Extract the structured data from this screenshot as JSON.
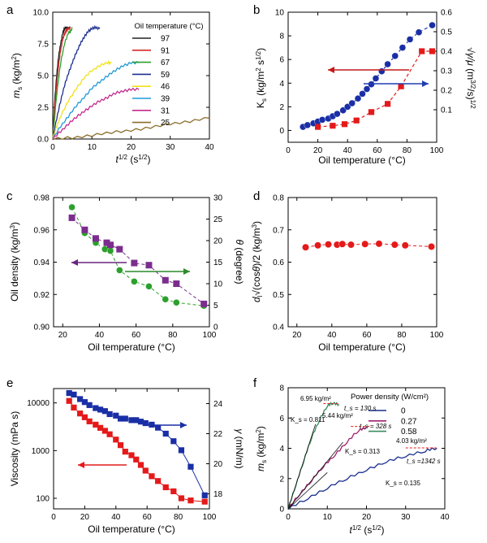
{
  "panels": [
    {
      "id": "a",
      "letter": "a"
    },
    {
      "id": "b",
      "letter": "b"
    },
    {
      "id": "c",
      "letter": "c"
    },
    {
      "id": "d",
      "letter": "d"
    },
    {
      "id": "e",
      "letter": "e"
    },
    {
      "id": "f",
      "letter": "f"
    }
  ],
  "chart_data": [
    {
      "id": "a",
      "type": "line",
      "xlabel": "t^1/2 (s^1/2)",
      "ylabel": "m_s (kg/m²)",
      "xlim": [
        0,
        40
      ],
      "ylim": [
        0,
        10
      ],
      "xticks": [
        0,
        10,
        20,
        30,
        40
      ],
      "yticks": [
        0.0,
        2.5,
        5.0,
        7.5,
        10.0
      ],
      "ytick_labels": [
        "0.0",
        "2.5",
        "5.0",
        "7.5",
        "10.0"
      ],
      "legend_title": "Oil temperature (°C)",
      "legend_position": "top-right",
      "series": [
        {
          "name": "97",
          "color": "#222222",
          "x": [
            0,
            0.5,
            1,
            1.5,
            2,
            2.5,
            3,
            3.5,
            4,
            4.5
          ],
          "y": [
            0,
            3.0,
            5.0,
            6.5,
            7.5,
            8.3,
            8.7,
            8.8,
            8.7,
            8.8
          ]
        },
        {
          "name": "91",
          "color": "#d62728",
          "x": [
            0,
            0.5,
            1,
            1.5,
            2,
            2.5,
            3,
            3.5,
            4,
            4.5
          ],
          "y": [
            0,
            2.5,
            4.3,
            5.8,
            7.0,
            7.8,
            8.3,
            8.6,
            8.7,
            8.7
          ]
        },
        {
          "name": "67",
          "color": "#2ca02c",
          "x": [
            0,
            1,
            2,
            3,
            4,
            4.5,
            5
          ],
          "y": [
            0,
            3.5,
            6.0,
            7.5,
            8.4,
            8.5,
            8.7
          ]
        },
        {
          "name": "59",
          "color": "#1f2f8f",
          "x": [
            0,
            1,
            2,
            3,
            4,
            5,
            6,
            7,
            8,
            9,
            10,
            11,
            12
          ],
          "y": [
            0,
            1.6,
            3.0,
            4.2,
            5.2,
            6.0,
            6.8,
            7.5,
            8.0,
            8.5,
            8.7,
            8.8,
            8.7
          ]
        },
        {
          "name": "46",
          "color": "#f2e11a",
          "x": [
            0,
            1,
            2,
            4,
            6,
            8,
            10,
            12,
            14,
            15
          ],
          "y": [
            0,
            1.0,
            1.8,
            3.0,
            4.0,
            4.8,
            5.4,
            5.8,
            6.0,
            6.0
          ]
        },
        {
          "name": "39",
          "color": "#1f9ad8",
          "x": [
            0,
            2,
            4,
            6,
            8,
            10,
            12,
            14,
            16,
            18,
            20,
            22
          ],
          "y": [
            0,
            1.0,
            1.8,
            2.6,
            3.3,
            4.0,
            4.5,
            5.0,
            5.4,
            5.8,
            6.0,
            6.0
          ]
        },
        {
          "name": "31",
          "color": "#c42a8e",
          "x": [
            0,
            2,
            4,
            6,
            8,
            10,
            12,
            14,
            16,
            18,
            20,
            22
          ],
          "y": [
            0,
            0.6,
            1.2,
            1.7,
            2.2,
            2.6,
            3.0,
            3.3,
            3.6,
            3.8,
            3.9,
            3.9
          ]
        },
        {
          "name": "25",
          "color": "#8b6d2a",
          "x": [
            0,
            5,
            10,
            15,
            20,
            25,
            30,
            35,
            40
          ],
          "y": [
            0,
            0.1,
            0.3,
            0.5,
            0.7,
            0.9,
            1.2,
            1.4,
            1.65
          ]
        }
      ]
    },
    {
      "id": "b",
      "type": "line",
      "xlabel": "Oil temperature (°C)",
      "ylabel": "K_s (kg/m² s^1/2)",
      "y2label": "√(γ/μ) (m^3/2/s)^1/2",
      "xlim": [
        0,
        100
      ],
      "ylim": [
        -1,
        10
      ],
      "y2lim": [
        -0.0667,
        0.6
      ],
      "xticks": [
        0,
        20,
        40,
        60,
        80,
        100
      ],
      "yticks": [
        0,
        2,
        4,
        6,
        8,
        10
      ],
      "y2ticks": [
        0.1,
        0.2,
        0.3,
        0.4,
        0.5,
        0.6
      ],
      "series": [
        {
          "name": "K_s",
          "axis": "left",
          "color": "#1a2fa6",
          "marker": "circle",
          "x": [
            10,
            13,
            17,
            20,
            23,
            27,
            30,
            33,
            37,
            40,
            43,
            47,
            50,
            53,
            56,
            59,
            63,
            67,
            72,
            77,
            82,
            88,
            97
          ],
          "y": [
            0.3,
            0.45,
            0.6,
            0.75,
            0.9,
            1.0,
            1.2,
            1.4,
            1.7,
            2.0,
            2.3,
            2.7,
            3.1,
            3.5,
            3.9,
            4.4,
            5.0,
            5.6,
            6.3,
            7.0,
            7.7,
            8.3,
            8.9
          ]
        },
        {
          "name": "√(γ/μ)",
          "axis": "right",
          "color": "#e41a1a",
          "marker": "square",
          "x": [
            20,
            30,
            38,
            46,
            56,
            67,
            76,
            90,
            97
          ],
          "y": [
            0.012,
            0.018,
            0.026,
            0.045,
            0.088,
            0.13,
            0.22,
            0.4,
            0.4
          ]
        }
      ]
    },
    {
      "id": "c",
      "type": "scatter",
      "xlabel": "Oil temperature (°C)",
      "ylabel": "Oil density (kg/m³)",
      "y2label": "θ (degree)",
      "xlim": [
        15,
        100
      ],
      "ylim": [
        0.9,
        0.98
      ],
      "y2lim": [
        0,
        30
      ],
      "xticks": [
        20,
        40,
        60,
        80,
        100
      ],
      "yticks": [
        0.9,
        0.92,
        0.94,
        0.96,
        0.98
      ],
      "y2ticks": [
        0,
        5,
        10,
        15,
        20,
        25,
        30
      ],
      "series": [
        {
          "name": "density",
          "axis": "left",
          "color": "#2ca02c",
          "marker": "circle",
          "x": [
            25,
            32,
            38,
            43,
            46,
            51,
            59,
            67,
            76,
            82,
            97
          ],
          "y": [
            0.974,
            0.958,
            0.952,
            0.948,
            0.947,
            0.935,
            0.928,
            0.925,
            0.917,
            0.915,
            0.913
          ]
        },
        {
          "name": "θ",
          "axis": "right",
          "color": "#7b2d8e",
          "marker": "square",
          "x": [
            25,
            32,
            38,
            44,
            46,
            51,
            59,
            67,
            76,
            82,
            97
          ],
          "y": [
            25.3,
            22.5,
            20.5,
            19.5,
            19.0,
            18.0,
            14.8,
            14.3,
            10.8,
            10.0,
            5.3
          ]
        }
      ]
    },
    {
      "id": "d",
      "type": "scatter",
      "xlabel": "Oil temperature (°C)",
      "ylabel": "d_l√(cosθ)/2 (kg/m³)",
      "xlim": [
        15,
        100
      ],
      "ylim": [
        0.4,
        0.8
      ],
      "xticks": [
        20,
        40,
        60,
        80,
        100
      ],
      "yticks": [
        0.4,
        0.5,
        0.6,
        0.7,
        0.8
      ],
      "series": [
        {
          "name": "d",
          "color": "#e41a1a",
          "marker": "circle",
          "x": [
            25,
            32,
            38,
            43,
            46,
            51,
            59,
            67,
            76,
            82,
            97
          ],
          "y": [
            0.646,
            0.652,
            0.655,
            0.654,
            0.656,
            0.654,
            0.656,
            0.657,
            0.654,
            0.652,
            0.648
          ]
        }
      ]
    },
    {
      "id": "e",
      "type": "line",
      "xlabel": "Oil temperature (°C)",
      "ylabel": "Viscosity (mPa s)",
      "y2label": "γ (mN/m)",
      "xlim": [
        0,
        100
      ],
      "ylim_log": [
        60,
        20000
      ],
      "y2lim": [
        17,
        25
      ],
      "xticks": [
        0,
        20,
        40,
        60,
        80,
        100
      ],
      "yticks": [
        100,
        1000,
        10000
      ],
      "y2ticks": [
        18,
        20,
        22,
        24
      ],
      "series": [
        {
          "name": "viscosity",
          "axis": "left",
          "color": "#e41a1a",
          "marker": "square",
          "x": [
            10,
            13,
            17,
            20,
            23,
            27,
            30,
            33,
            36,
            40,
            43,
            46,
            50,
            53,
            56,
            59,
            63,
            67,
            72,
            77,
            82,
            88,
            97
          ],
          "y": [
            11000,
            8000,
            6000,
            5000,
            4100,
            3500,
            3000,
            2600,
            2200,
            1700,
            1300,
            950,
            800,
            650,
            500,
            380,
            290,
            230,
            170,
            140,
            100,
            90,
            85
          ]
        },
        {
          "name": "surface tension",
          "axis": "right",
          "color": "#1a2fa6",
          "marker": "square",
          "x": [
            10,
            13,
            17,
            20,
            23,
            27,
            30,
            33,
            36,
            40,
            43,
            46,
            50,
            53,
            56,
            59,
            63,
            67,
            72,
            77,
            82,
            88,
            97
          ],
          "y": [
            24.7,
            24.6,
            24.3,
            24.1,
            23.9,
            23.7,
            23.6,
            23.5,
            23.3,
            23.2,
            23.0,
            23.0,
            22.9,
            22.9,
            22.8,
            22.7,
            22.6,
            22.4,
            22.0,
            21.5,
            20.9,
            19.8,
            17.9
          ]
        }
      ]
    },
    {
      "id": "f",
      "type": "line",
      "xlabel": "t^1/2 (s^1/2)",
      "ylabel": "m_s (kg/m²)",
      "xlim": [
        0,
        40
      ],
      "ylim": [
        0,
        8
      ],
      "xticks": [
        0,
        10,
        20,
        30,
        40
      ],
      "yticks": [
        0,
        2,
        4,
        6,
        8
      ],
      "legend_title": "Power density (W/cm²)",
      "legend_position": "top-right",
      "series": [
        {
          "name": "0",
          "color": "#1a2f8f",
          "x": [
            0,
            5,
            10,
            15,
            20,
            25,
            30,
            35,
            38
          ],
          "y": [
            0,
            0.7,
            1.4,
            2.0,
            2.6,
            3.1,
            3.5,
            3.85,
            4.0
          ]
        },
        {
          "name": "0.27",
          "color": "#a02070",
          "x": [
            0,
            3,
            6,
            9,
            12,
            15,
            18,
            20
          ],
          "y": [
            0,
            1.0,
            1.9,
            2.8,
            3.6,
            4.4,
            5.2,
            5.4
          ]
        },
        {
          "name": "0.58",
          "color": "#3b8a5e",
          "x": [
            0,
            2,
            4,
            6,
            8,
            10,
            11.5,
            13
          ],
          "y": [
            0,
            1.6,
            3.2,
            4.7,
            5.9,
            6.8,
            7.0,
            6.9
          ]
        }
      ],
      "annotations": {
        "plateau_0": "4.03 kg/m²",
        "plateau_027": "5.44 kg/m²",
        "plateau_058": "6.95 kg/m²",
        "ks_0": "K_s = 0.135",
        "ks_027": "K_s = 0.313",
        "ks_058": "K_s = 0.811",
        "ts_0": "t_s =1342 s",
        "ts_027": "t_s = 328 s",
        "ts_058": "t_s = 130 s"
      }
    }
  ]
}
